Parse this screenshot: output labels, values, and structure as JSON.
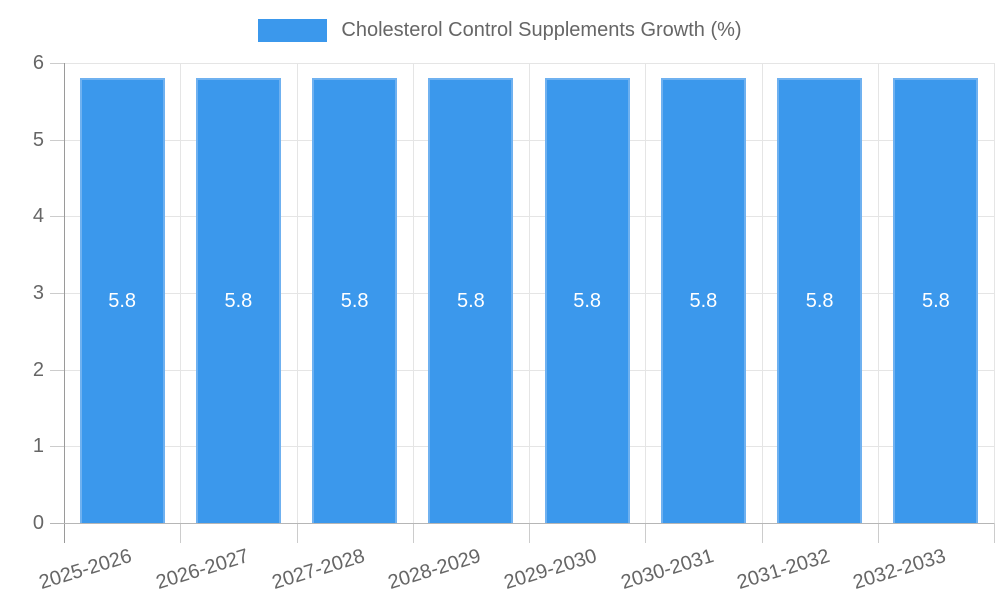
{
  "chart_data": {
    "type": "bar",
    "title": "Cholesterol Control Supplements Growth (%)",
    "legend": {
      "label": "Cholesterol Control Supplements Growth (%)",
      "position": "top"
    },
    "categories": [
      "2025-2026",
      "2026-2027",
      "2027-2028",
      "2028-2029",
      "2029-2030",
      "2030-2031",
      "2031-2032",
      "2032-2033"
    ],
    "values": [
      5.8,
      5.8,
      5.8,
      5.8,
      5.8,
      5.8,
      5.8,
      5.8
    ],
    "value_labels": [
      "5.8",
      "5.8",
      "5.8",
      "5.8",
      "5.8",
      "5.8",
      "5.8",
      "5.8"
    ],
    "xlabel": "",
    "ylabel": "",
    "ylim": [
      0,
      6
    ],
    "yticks": [
      "0",
      "1",
      "2",
      "3",
      "4",
      "5",
      "6"
    ],
    "grid": true,
    "legend_position": "top",
    "colors": {
      "bar_fill": "#3b98ec",
      "bar_border": "#6fb1f0",
      "grid": "#e5e5e5",
      "axis_y": "#9a9a9a",
      "axis_x": "#b6b6b6",
      "tick_mark": "#cccccc",
      "tick_label": "#666666",
      "value_label": "#ffffff",
      "title_text": "#666666"
    }
  }
}
